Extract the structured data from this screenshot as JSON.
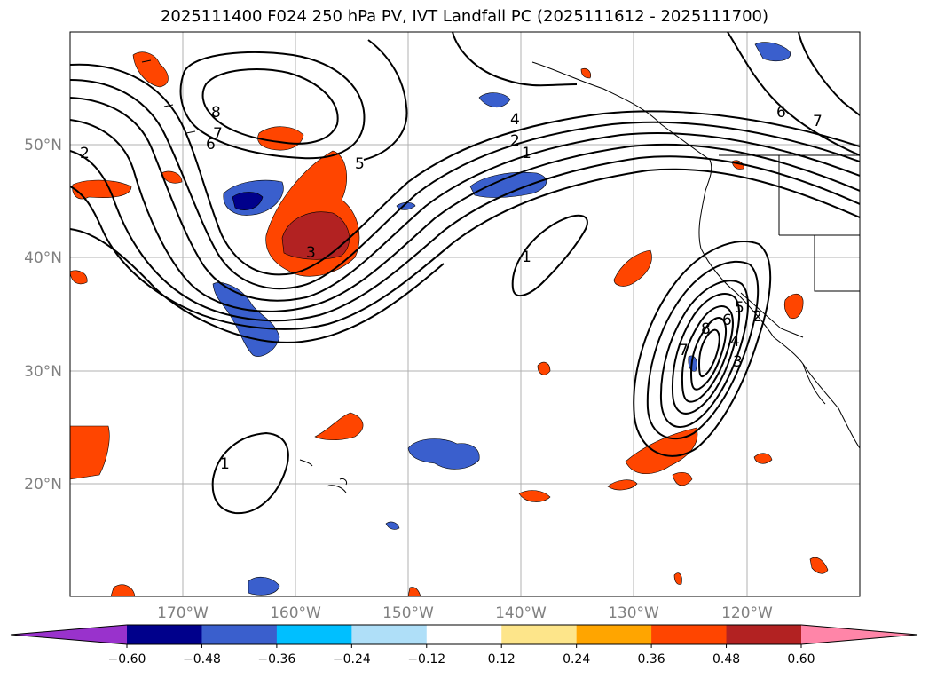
{
  "title": "2025111400 F024 250 hPa PV, IVT Landfall PC (2025111612 - 2025111700)",
  "lat_labels": [
    "50°N",
    "40°N",
    "30°N",
    "20°N"
  ],
  "lon_labels": [
    "170°W",
    "160°W",
    "150°W",
    "140°W",
    "130°W",
    "120°W"
  ],
  "contour_labels": [
    "2",
    "6",
    "7",
    "8",
    "5",
    "3",
    "4",
    "2",
    "1",
    "1",
    "1",
    "7",
    "8",
    "6",
    "5",
    "4",
    "3",
    "6",
    "7",
    "2"
  ],
  "colorbar": {
    "ticks": [
      "−0.60",
      "−0.48",
      "−0.36",
      "−0.24",
      "−0.12",
      "0.12",
      "0.24",
      "0.36",
      "0.48",
      "0.60"
    ],
    "colors": [
      "#9932cc",
      "#00008b",
      "#3a5fcd",
      "#00bfff",
      "#afdff8",
      "#ffffff",
      "#fde58a",
      "#ffa500",
      "#ff4500",
      "#b22222",
      "#ff85a8"
    ]
  },
  "colors": {
    "positive_high": "#ff4500",
    "positive_core": "#b22222",
    "negative": "#3a5fcd",
    "negative_core": "#00008b"
  }
}
